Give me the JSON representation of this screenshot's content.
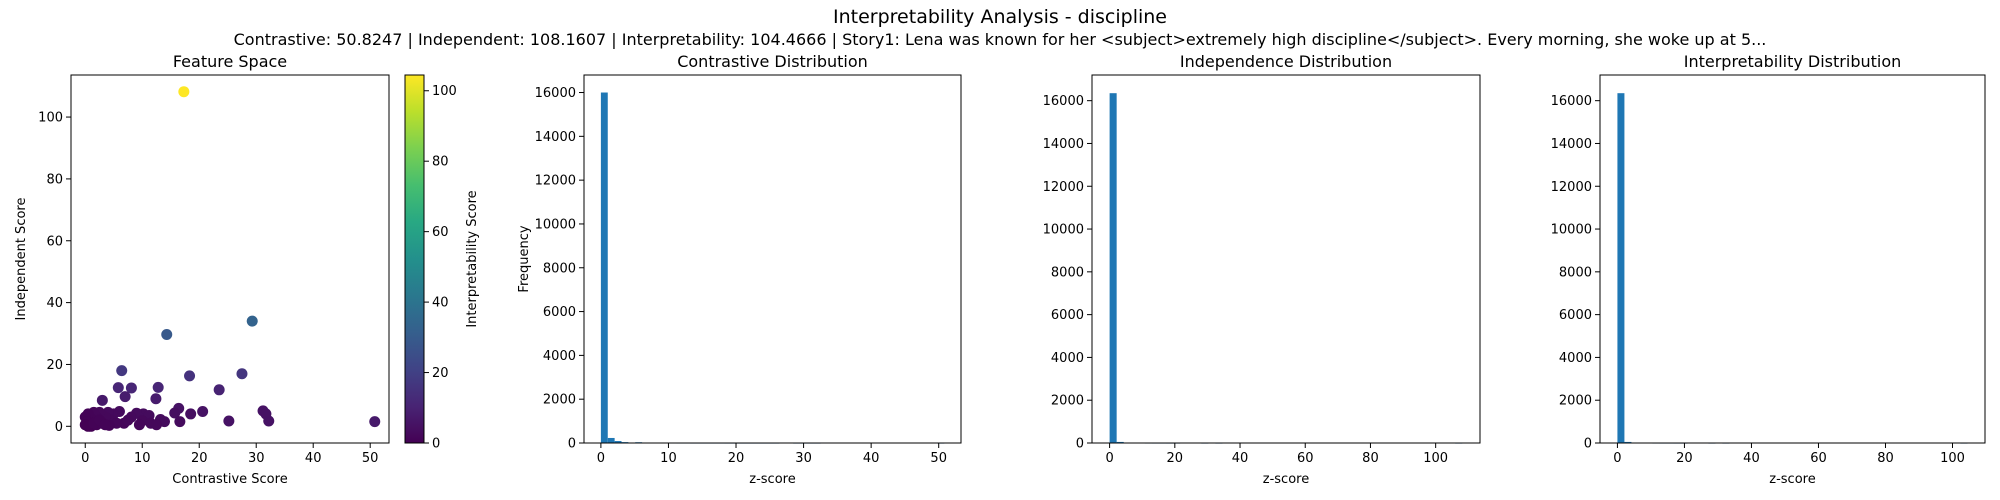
{
  "figure": {
    "suptitle": "Interpretability Analysis - discipline",
    "subtitle": "Contrastive: 50.8247 | Independent: 108.1607 | Interpretability: 104.4666 | Story1: Lena was known for her <subject>extremely high discipline</subject>. Every morning, she woke up at 5..."
  },
  "chart_data": [
    {
      "type": "scatter",
      "title": "Feature Space",
      "xlabel": "Contrastive Score",
      "ylabel": "Independent Score",
      "xlim": [
        -2.5,
        53.3
      ],
      "ylim": [
        -5.4,
        113.6
      ],
      "xticks": [
        0,
        10,
        20,
        30,
        40,
        50
      ],
      "yticks": [
        0,
        20,
        40,
        60,
        80,
        100
      ],
      "colormap": "viridis",
      "colorbar": {
        "label": "Interpretability Score",
        "range": [
          0,
          104.47
        ],
        "ticks": [
          0,
          20,
          40,
          60,
          80,
          100
        ]
      },
      "points": [
        {
          "x": 17.3,
          "y": 108.2,
          "c": 104.5
        },
        {
          "x": 29.3,
          "y": 34.0,
          "c": 33.0
        },
        {
          "x": 14.3,
          "y": 29.7,
          "c": 29.0
        },
        {
          "x": 6.4,
          "y": 18.0,
          "c": 17.0
        },
        {
          "x": 27.5,
          "y": 17.0,
          "c": 16.0
        },
        {
          "x": 18.3,
          "y": 16.3,
          "c": 15.0
        },
        {
          "x": 5.8,
          "y": 12.5,
          "c": 11.0
        },
        {
          "x": 8.1,
          "y": 12.4,
          "c": 11.0
        },
        {
          "x": 12.8,
          "y": 12.6,
          "c": 11.0
        },
        {
          "x": 23.5,
          "y": 11.8,
          "c": 10.0
        },
        {
          "x": 7.0,
          "y": 9.6,
          "c": 8.0
        },
        {
          "x": 12.4,
          "y": 8.9,
          "c": 8.0
        },
        {
          "x": 3.0,
          "y": 8.4,
          "c": 7.0
        },
        {
          "x": 16.4,
          "y": 5.8,
          "c": 5.0
        },
        {
          "x": 20.6,
          "y": 4.8,
          "c": 5.0
        },
        {
          "x": 15.7,
          "y": 4.3,
          "c": 4.0
        },
        {
          "x": 31.2,
          "y": 5.0,
          "c": 5.0
        },
        {
          "x": 31.7,
          "y": 4.0,
          "c": 5.0
        },
        {
          "x": 18.5,
          "y": 4.0,
          "c": 4.0
        },
        {
          "x": 32.2,
          "y": 1.7,
          "c": 5.0
        },
        {
          "x": 25.2,
          "y": 1.7,
          "c": 5.0
        },
        {
          "x": 50.8,
          "y": 1.5,
          "c": 7.0
        },
        {
          "x": 16.6,
          "y": 1.5,
          "c": 3.0
        },
        {
          "x": 13.2,
          "y": 2.2,
          "c": 3.0
        },
        {
          "x": 13.9,
          "y": 1.5,
          "c": 3.0
        },
        {
          "x": 10.2,
          "y": 4.0,
          "c": 3.0
        },
        {
          "x": 11.2,
          "y": 3.5,
          "c": 3.0
        },
        {
          "x": 9.0,
          "y": 4.2,
          "c": 3.0
        },
        {
          "x": 8.1,
          "y": 3.0,
          "c": 2.5
        },
        {
          "x": 10.0,
          "y": 1.8,
          "c": 2.0
        },
        {
          "x": 6.0,
          "y": 4.8,
          "c": 3.0
        },
        {
          "x": 5.0,
          "y": 4.0,
          "c": 2.5
        },
        {
          "x": 4.0,
          "y": 4.5,
          "c": 2.5
        },
        {
          "x": 4.5,
          "y": 2.0,
          "c": 2.0
        },
        {
          "x": 3.5,
          "y": 3.0,
          "c": 2.0
        },
        {
          "x": 2.5,
          "y": 4.5,
          "c": 2.0
        },
        {
          "x": 2.0,
          "y": 3.0,
          "c": 1.5
        },
        {
          "x": 1.5,
          "y": 4.5,
          "c": 1.5
        },
        {
          "x": 1.0,
          "y": 2.5,
          "c": 1.0
        },
        {
          "x": 0.5,
          "y": 4.0,
          "c": 1.0
        },
        {
          "x": 0.0,
          "y": 3.0,
          "c": 0.5
        },
        {
          "x": 0.3,
          "y": 1.5,
          "c": 0.5
        },
        {
          "x": 0.0,
          "y": 0.5,
          "c": 0.0
        },
        {
          "x": 1.0,
          "y": 0.0,
          "c": 0.0
        },
        {
          "x": 2.0,
          "y": 0.5,
          "c": 0.5
        },
        {
          "x": 3.0,
          "y": 1.0,
          "c": 1.0
        },
        {
          "x": 0.5,
          "y": 0.0,
          "c": 0.0
        },
        {
          "x": 1.5,
          "y": 1.0,
          "c": 0.5
        },
        {
          "x": 6.8,
          "y": 1.0,
          "c": 1.5
        },
        {
          "x": 7.5,
          "y": 2.0,
          "c": 2.0
        },
        {
          "x": 5.5,
          "y": 1.0,
          "c": 1.5
        },
        {
          "x": 9.5,
          "y": 0.5,
          "c": 1.5
        },
        {
          "x": 11.5,
          "y": 1.0,
          "c": 2.0
        },
        {
          "x": 12.5,
          "y": 0.5,
          "c": 2.0
        },
        {
          "x": 4.2,
          "y": 0.3,
          "c": 1.0
        },
        {
          "x": 2.5,
          "y": 2.0,
          "c": 1.0
        },
        {
          "x": 3.5,
          "y": 0.5,
          "c": 1.0
        }
      ]
    },
    {
      "type": "bar",
      "title": "Contrastive Distribution",
      "xlabel": "z-score",
      "ylabel": "Frequency",
      "xlim": [
        -2.5,
        53.3
      ],
      "ylim": [
        0,
        16800
      ],
      "xticks": [
        0,
        10,
        20,
        30,
        40,
        50
      ],
      "yticks": [
        0,
        2000,
        4000,
        6000,
        8000,
        10000,
        12000,
        14000,
        16000
      ],
      "bin_start": 0,
      "bin_width": 1.0165,
      "values": [
        16000,
        230,
        90,
        40,
        20,
        35,
        10,
        5,
        5,
        5,
        4,
        3,
        3,
        2,
        2,
        2,
        2,
        2,
        1,
        1,
        1,
        1,
        1,
        1,
        1,
        1,
        0,
        0,
        1,
        1,
        1,
        1,
        0,
        0,
        0,
        0,
        0,
        0,
        0,
        0,
        0,
        0,
        0,
        0,
        0,
        0,
        0,
        0,
        0,
        1
      ]
    },
    {
      "type": "bar",
      "title": "Independence Distribution",
      "xlabel": "z-score",
      "ylabel": "",
      "xlim": [
        -5.4,
        113.6
      ],
      "ylim": [
        0,
        17200
      ],
      "xticks": [
        0,
        20,
        40,
        60,
        80,
        100
      ],
      "yticks": [
        0,
        2000,
        4000,
        6000,
        8000,
        10000,
        12000,
        14000,
        16000
      ],
      "bin_start": 0,
      "bin_width": 2.1632,
      "values": [
        16350,
        50,
        15,
        8,
        5,
        3,
        2,
        2,
        1,
        1,
        0,
        0,
        0,
        1,
        0,
        1,
        0,
        0,
        0,
        0,
        0,
        0,
        0,
        0,
        0,
        0,
        0,
        0,
        0,
        0,
        0,
        0,
        0,
        0,
        0,
        0,
        0,
        0,
        0,
        0,
        0,
        0,
        0,
        0,
        0,
        0,
        0,
        0,
        0,
        1
      ]
    },
    {
      "type": "bar",
      "title": "Interpretability Distribution",
      "xlabel": "z-score",
      "ylabel": "",
      "xlim": [
        -5.2,
        109.7
      ],
      "ylim": [
        0,
        17200
      ],
      "xticks": [
        0,
        20,
        40,
        60,
        80,
        100
      ],
      "yticks": [
        0,
        2000,
        4000,
        6000,
        8000,
        10000,
        12000,
        14000,
        16000
      ],
      "bin_start": 0,
      "bin_width": 2.0893,
      "values": [
        16350,
        50,
        15,
        8,
        5,
        3,
        2,
        2,
        1,
        1,
        0,
        0,
        0,
        1,
        0,
        1,
        0,
        0,
        0,
        0,
        0,
        0,
        0,
        0,
        0,
        0,
        0,
        0,
        0,
        0,
        0,
        0,
        0,
        0,
        0,
        0,
        0,
        0,
        0,
        0,
        0,
        0,
        0,
        0,
        0,
        0,
        0,
        0,
        0,
        1
      ]
    }
  ]
}
